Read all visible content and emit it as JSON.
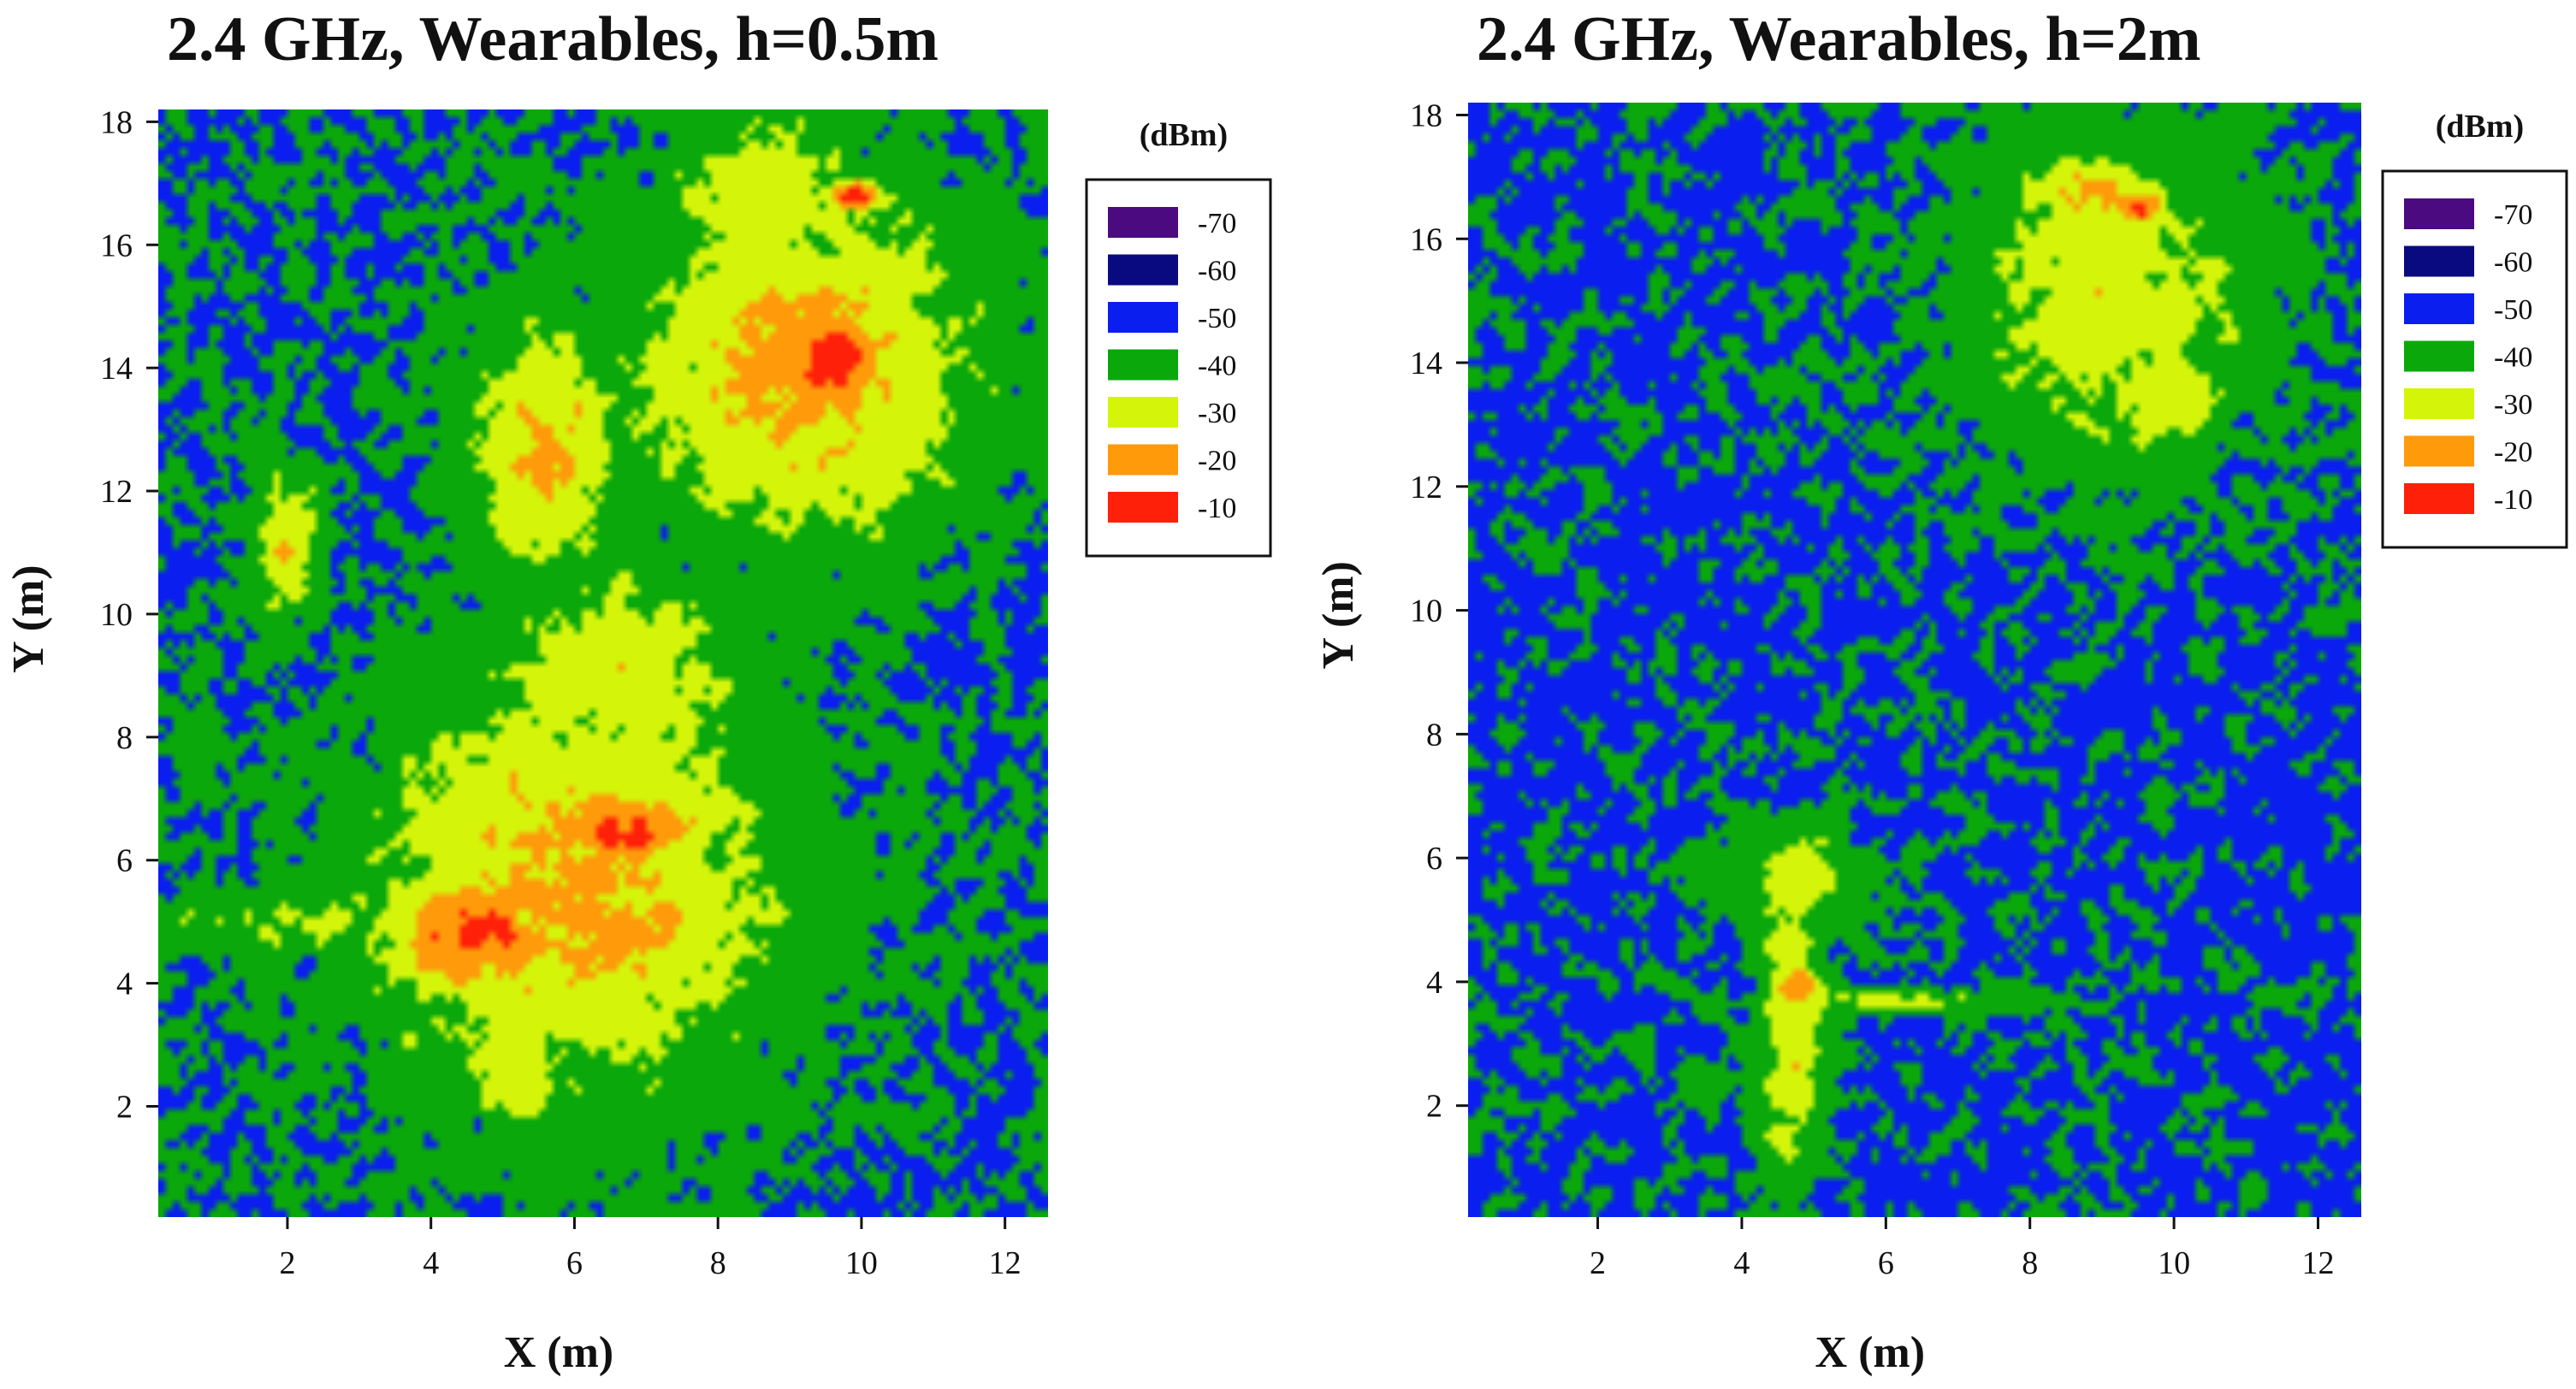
{
  "chart_data": [
    {
      "type": "heatmap",
      "title": "2.4 GHz, Wearables, h=0.5m",
      "xlabel": "X (m)",
      "ylabel": "Y (m)",
      "xlim": [
        0.2,
        12.6
      ],
      "ylim": [
        0.2,
        18.2
      ],
      "xticks": [
        2,
        4,
        6,
        8,
        10,
        12
      ],
      "yticks": [
        2,
        4,
        6,
        8,
        10,
        12,
        14,
        16,
        18
      ],
      "legend": {
        "title": "(dBm)",
        "position": "right",
        "levels": [
          {
            "label": "-70",
            "color": "#4b0a7f"
          },
          {
            "label": "-60",
            "color": "#0a0a80"
          },
          {
            "label": "-50",
            "color": "#0a1ef0"
          },
          {
            "label": "-40",
            "color": "#0aa80a"
          },
          {
            "label": "-30",
            "color": "#d4f50a"
          },
          {
            "label": "-20",
            "color": "#ff9a0a"
          },
          {
            "label": "-10",
            "color": "#ff200a"
          }
        ]
      },
      "base_level": -45,
      "regions": [
        {
          "x": [
            0.2,
            3.2
          ],
          "y": [
            10.5,
            18.2
          ],
          "level": -52
        },
        {
          "x": [
            0.2,
            2.5
          ],
          "y": [
            14.0,
            18.2
          ],
          "level": -56
        },
        {
          "x": [
            0.2,
            3.8
          ],
          "y": [
            0.2,
            3.8
          ],
          "level": -56
        },
        {
          "x": [
            0.2,
            3.5
          ],
          "y": [
            6.5,
            10.0
          ],
          "level": -52
        },
        {
          "x": [
            8.5,
            12.6
          ],
          "y": [
            6.8,
            11.8
          ],
          "level": -51
        },
        {
          "x": [
            11.0,
            12.6
          ],
          "y": [
            0.2,
            18.2
          ],
          "level": -51
        },
        {
          "x": [
            9.5,
            12.6
          ],
          "y": [
            0.2,
            3.5
          ],
          "level": -50
        }
      ],
      "hotspots": [
        {
          "x": 6.0,
          "y": 5.6,
          "sx": 1.9,
          "sy": 2.3,
          "peak": -22
        },
        {
          "x": 4.6,
          "y": 4.8,
          "sx": 0.9,
          "sy": 0.8,
          "peak": -13
        },
        {
          "x": 6.7,
          "y": 6.5,
          "sx": 0.8,
          "sy": 0.45,
          "peak": -11
        },
        {
          "x": 6.9,
          "y": 4.9,
          "sx": 0.8,
          "sy": 0.5,
          "peak": -21
        },
        {
          "x": 6.6,
          "y": 9.0,
          "sx": 1.2,
          "sy": 1.1,
          "peak": -27
        },
        {
          "x": 5.2,
          "y": 2.8,
          "sx": 0.5,
          "sy": 0.9,
          "peak": -28
        },
        {
          "x": 2.1,
          "y": 5.0,
          "sx": 1.4,
          "sy": 0.35,
          "peak": -33
        },
        {
          "x": 9.2,
          "y": 14.0,
          "sx": 1.6,
          "sy": 1.9,
          "peak": -21
        },
        {
          "x": 9.6,
          "y": 14.1,
          "sx": 0.6,
          "sy": 0.7,
          "peak": -10
        },
        {
          "x": 5.6,
          "y": 12.8,
          "sx": 0.7,
          "sy": 1.4,
          "peak": -23
        },
        {
          "x": 8.6,
          "y": 16.9,
          "sx": 0.8,
          "sy": 0.9,
          "peak": -28
        },
        {
          "x": 9.9,
          "y": 16.8,
          "sx": 0.35,
          "sy": 0.2,
          "peak": -14
        },
        {
          "x": 2.0,
          "y": 11.2,
          "sx": 0.35,
          "sy": 0.8,
          "peak": -26
        }
      ]
    },
    {
      "type": "heatmap",
      "title": "2.4 GHz, Wearables, h=2m",
      "xlabel": "X (m)",
      "ylabel": "Y (m)",
      "xlim": [
        0.2,
        12.6
      ],
      "ylim": [
        0.2,
        18.2
      ],
      "xticks": [
        2,
        4,
        6,
        8,
        10,
        12
      ],
      "yticks": [
        2,
        4,
        6,
        8,
        10,
        12,
        14,
        16,
        18
      ],
      "legend": {
        "title": "(dBm)",
        "position": "right",
        "levels": [
          {
            "label": "-70",
            "color": "#4b0a7f"
          },
          {
            "label": "-60",
            "color": "#0a0a80"
          },
          {
            "label": "-50",
            "color": "#0a1ef0"
          },
          {
            "label": "-40",
            "color": "#0aa80a"
          },
          {
            "label": "-30",
            "color": "#d4f50a"
          },
          {
            "label": "-20",
            "color": "#ff9a0a"
          },
          {
            "label": "-10",
            "color": "#ff200a"
          }
        ]
      },
      "base_level": -46,
      "regions": [
        {
          "x": [
            0.2,
            3.7
          ],
          "y": [
            0.2,
            10.0
          ],
          "level": -55
        },
        {
          "x": [
            0.2,
            3.0
          ],
          "y": [
            12.5,
            18.2
          ],
          "level": -54
        },
        {
          "x": [
            9.5,
            12.6
          ],
          "y": [
            0.2,
            11.5
          ],
          "level": -50
        },
        {
          "x": [
            4.0,
            7.0
          ],
          "y": [
            14.0,
            18.2
          ],
          "level": -50
        },
        {
          "x": [
            11.2,
            12.6
          ],
          "y": [
            14.0,
            18.2
          ],
          "level": -52
        }
      ],
      "hotspots": [
        {
          "x": 9.1,
          "y": 15.0,
          "sx": 1.4,
          "sy": 1.8,
          "peak": -29
        },
        {
          "x": 8.8,
          "y": 16.8,
          "sx": 0.7,
          "sy": 0.4,
          "peak": -22
        },
        {
          "x": 9.5,
          "y": 16.5,
          "sx": 0.3,
          "sy": 0.22,
          "peak": -11
        },
        {
          "x": 10.0,
          "y": 13.5,
          "sx": 0.5,
          "sy": 0.6,
          "peak": -26
        },
        {
          "x": 4.7,
          "y": 3.3,
          "sx": 0.35,
          "sy": 1.6,
          "peak": -27
        },
        {
          "x": 4.8,
          "y": 3.9,
          "sx": 0.3,
          "sy": 0.3,
          "peak": -18
        },
        {
          "x": 4.8,
          "y": 5.6,
          "sx": 0.6,
          "sy": 0.7,
          "peak": -30
        },
        {
          "x": 6.3,
          "y": 3.7,
          "sx": 1.3,
          "sy": 0.12,
          "peak": -32
        }
      ]
    }
  ]
}
